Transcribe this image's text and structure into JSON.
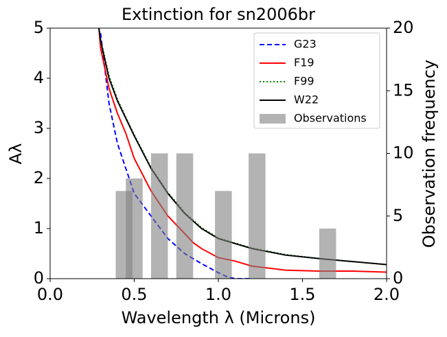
{
  "chart_data": {
    "type": "line",
    "title": "Extinction for sn2006br",
    "xlabel": "Wavelength λ (Microns)",
    "ylabel": "Aλ",
    "y2label": "Observation frequency",
    "xlim": [
      0,
      2
    ],
    "ylim": [
      0,
      5
    ],
    "y2lim": [
      0,
      20
    ],
    "xticks": [
      {
        "value": 0,
        "label": "0.0"
      },
      0.5,
      {
        "value": 1,
        "label": "1.0"
      },
      1.5,
      {
        "value": 2,
        "label": "2.0"
      }
    ],
    "yticks": [
      0,
      1,
      2,
      3,
      4,
      5
    ],
    "y2ticks": [
      0,
      5,
      10,
      15,
      20
    ],
    "legend": "upper right",
    "series": [
      {
        "name": "G23",
        "color": "#0000ff",
        "linestyle": "dashed",
        "x": [
          0.3,
          0.35,
          0.4,
          0.45,
          0.5,
          0.6,
          0.7,
          0.8,
          0.9,
          1.0,
          1.05,
          1.1,
          1.2
        ],
        "values": [
          4.9,
          3.5,
          2.7,
          2.2,
          1.7,
          1.25,
          0.8,
          0.5,
          0.3,
          0.12,
          0.04,
          0.0,
          0.0
        ]
      },
      {
        "name": "F19",
        "color": "#ff0000",
        "linestyle": "solid",
        "x": [
          0.29,
          0.3,
          0.35,
          0.4,
          0.45,
          0.5,
          0.6,
          0.7,
          0.8,
          0.85,
          0.9,
          1.0,
          1.1,
          1.2,
          1.4,
          1.6,
          1.8,
          2.0
        ],
        "values": [
          5.0,
          4.6,
          3.8,
          3.3,
          2.9,
          2.4,
          1.75,
          1.25,
          0.9,
          0.72,
          0.6,
          0.42,
          0.35,
          0.25,
          0.17,
          0.15,
          0.15,
          0.13
        ]
      },
      {
        "name": "F99",
        "color": "#008000",
        "linestyle": "dotted",
        "x": [
          0.29,
          0.3,
          0.35,
          0.4,
          0.45,
          0.5,
          0.6,
          0.7,
          0.8,
          0.9,
          1.0,
          1.2,
          1.4,
          1.6,
          1.8,
          2.0
        ],
        "values": [
          5.0,
          4.78,
          4.05,
          3.58,
          3.22,
          2.87,
          2.22,
          1.72,
          1.32,
          1.02,
          0.81,
          0.61,
          0.48,
          0.4,
          0.34,
          0.28
        ]
      },
      {
        "name": "W22",
        "color": "#000000",
        "linestyle": "solid",
        "x": [
          0.29,
          0.3,
          0.35,
          0.4,
          0.45,
          0.5,
          0.6,
          0.7,
          0.8,
          0.9,
          1.0,
          1.2,
          1.4,
          1.6,
          1.8,
          2.0
        ],
        "values": [
          5.0,
          4.75,
          4.0,
          3.55,
          3.2,
          2.85,
          2.2,
          1.7,
          1.3,
          1.0,
          0.8,
          0.6,
          0.47,
          0.4,
          0.34,
          0.28
        ]
      },
      {
        "name": "Observations",
        "color": "#808080",
        "type": "bar",
        "axis": "y2",
        "x": [
          0.44,
          0.5,
          0.65,
          0.8,
          1.03,
          1.23,
          1.65
        ],
        "values": [
          7,
          8,
          10,
          10,
          7,
          10,
          4
        ]
      }
    ]
  }
}
